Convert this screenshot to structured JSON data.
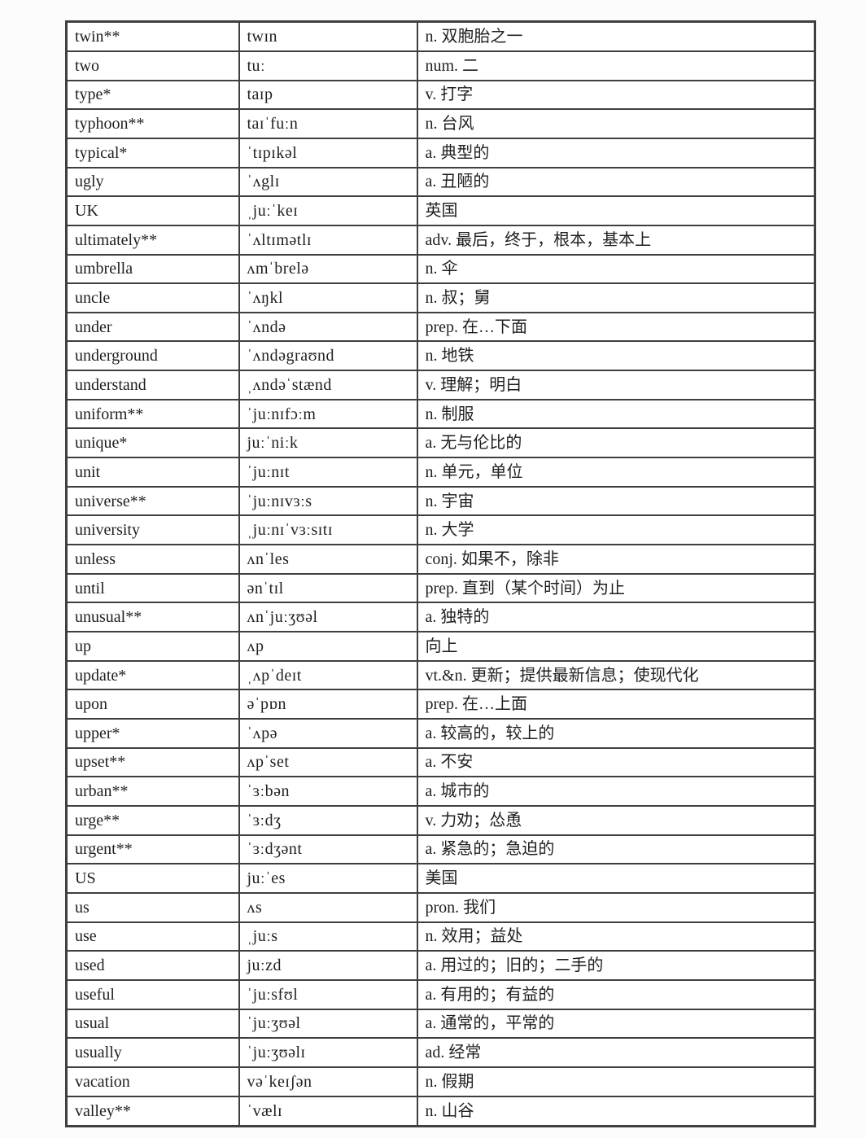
{
  "colors": {
    "border": "#3f3f3f",
    "text": "#1f1f1f",
    "background": "#fcfcfc"
  },
  "table": {
    "rows": [
      {
        "word": "twin**",
        "phonetic": "twɪn",
        "definition": "n. 双胞胎之一"
      },
      {
        "word": "two",
        "phonetic": "tuː",
        "definition": "num. 二"
      },
      {
        "word": "type*",
        "phonetic": "taɪp",
        "definition": "v. 打字"
      },
      {
        "word": "typhoon**",
        "phonetic": "taɪˈfuːn",
        "definition": "n. 台风"
      },
      {
        "word": "typical*",
        "phonetic": "ˈtɪpɪkəl",
        "definition": "a. 典型的"
      },
      {
        "word": "ugly",
        "phonetic": "ˈʌglɪ",
        "definition": "a. 丑陋的"
      },
      {
        "word": "UK",
        "phonetic": "ˌjuːˈkeɪ",
        "definition": "英国"
      },
      {
        "word": "ultimately**",
        "phonetic": "ˈʌltɪmətlɪ",
        "definition": "adv. 最后，终于，根本，基本上"
      },
      {
        "word": "umbrella",
        "phonetic": "ʌmˈbrelə",
        "definition": "n. 伞"
      },
      {
        "word": "uncle",
        "phonetic": "ˈʌŋkl",
        "definition": "n. 叔；舅"
      },
      {
        "word": "under",
        "phonetic": "ˈʌndə",
        "definition": "prep. 在…下面"
      },
      {
        "word": "underground",
        "phonetic": "ˈʌndəgraʊnd",
        "definition": "n. 地铁"
      },
      {
        "word": "understand",
        "phonetic": "ˌʌndəˈstænd",
        "definition": "v. 理解；明白"
      },
      {
        "word": "uniform**",
        "phonetic": "ˈjuːnɪfɔːm",
        "definition": "n. 制服"
      },
      {
        "word": "unique*",
        "phonetic": "juːˈniːk",
        "definition": "a. 无与伦比的"
      },
      {
        "word": "unit",
        "phonetic": "ˈjuːnɪt",
        "definition": "n. 单元，单位"
      },
      {
        "word": "universe**",
        "phonetic": "ˈjuːnɪvɜːs",
        "definition": "n. 宇宙"
      },
      {
        "word": "university",
        "phonetic": "ˌjuːnɪˈvɜːsɪtɪ",
        "definition": "n. 大学"
      },
      {
        "word": "unless",
        "phonetic": "ʌnˈles",
        "definition": "conj. 如果不，除非"
      },
      {
        "word": "until",
        "phonetic": "ənˈtɪl",
        "definition": "prep. 直到（某个时间）为止"
      },
      {
        "word": "unusual**",
        "phonetic": "ʌnˈjuːʒʊəl",
        "definition": "a. 独特的"
      },
      {
        "word": "up",
        "phonetic": "ʌp",
        "definition": "向上"
      },
      {
        "word": "update*",
        "phonetic": "ˌʌpˈdeɪt",
        "definition": "vt.&n. 更新；提供最新信息；使现代化"
      },
      {
        "word": "upon",
        "phonetic": "əˈpɒn",
        "definition": "prep. 在…上面"
      },
      {
        "word": "upper*",
        "phonetic": "ˈʌpə",
        "definition": "a. 较高的，较上的"
      },
      {
        "word": "upset**",
        "phonetic": "ʌpˈset",
        "definition": "a. 不安"
      },
      {
        "word": "urban**",
        "phonetic": "ˈɜːbən",
        "definition": "a. 城市的"
      },
      {
        "word": "urge**",
        "phonetic": "ˈɜːdʒ",
        "definition": "v. 力劝；怂恿"
      },
      {
        "word": "urgent**",
        "phonetic": "ˈɜːdʒənt",
        "definition": "a. 紧急的；急迫的"
      },
      {
        "word": "US",
        "phonetic": "juːˈes",
        "definition": "美国"
      },
      {
        "word": "us",
        "phonetic": "ʌs",
        "definition": "pron. 我们"
      },
      {
        "word": "use",
        "phonetic": "ˌjuːs",
        "definition": "n. 效用；益处"
      },
      {
        "word": "used",
        "phonetic": "juːzd",
        "definition": "a. 用过的；旧的；二手的"
      },
      {
        "word": "useful",
        "phonetic": "ˈjuːsfʊl",
        "definition": "a. 有用的；有益的"
      },
      {
        "word": "usual",
        "phonetic": "ˈjuːʒʊəl",
        "definition": "a. 通常的，平常的"
      },
      {
        "word": "usually",
        "phonetic": "ˈjuːʒʊəlɪ",
        "definition": "ad. 经常"
      },
      {
        "word": "vacation",
        "phonetic": "vəˈkeɪʃən",
        "definition": "n. 假期"
      },
      {
        "word": "valley**",
        "phonetic": "ˈvælɪ",
        "definition": "n. 山谷"
      }
    ]
  }
}
